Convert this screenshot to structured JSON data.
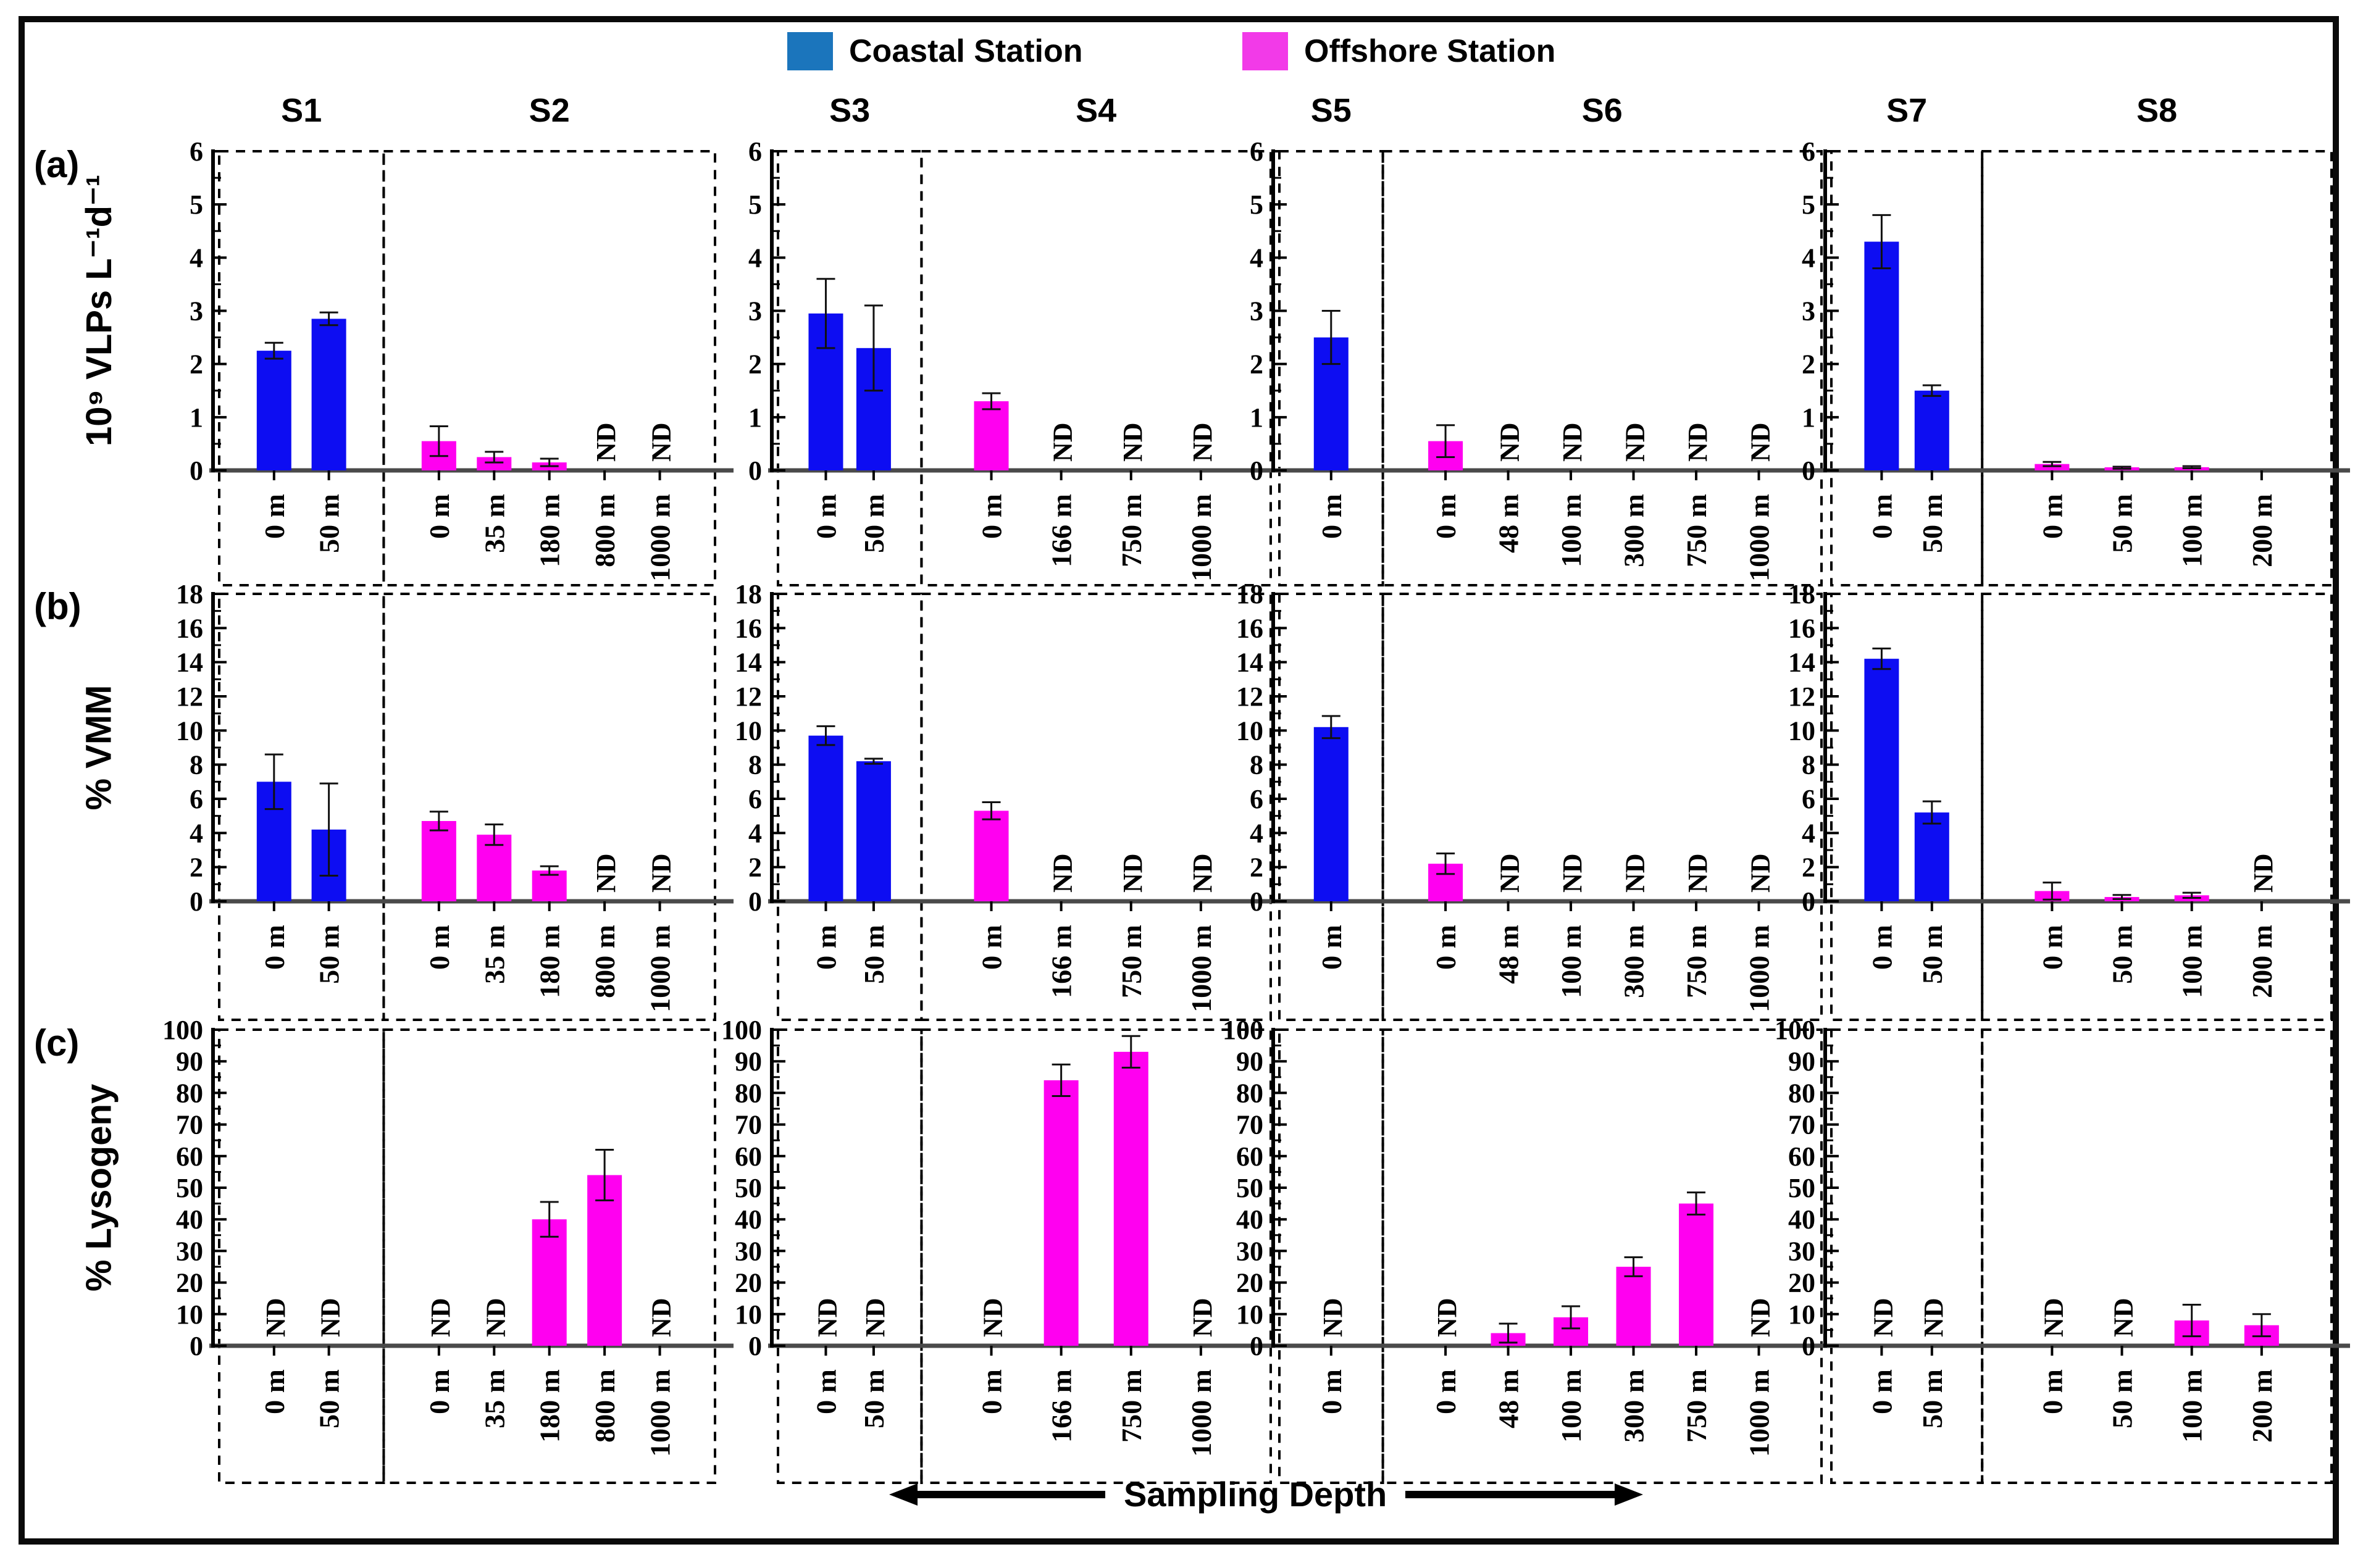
{
  "figure": {
    "legend": {
      "items": [
        {
          "id": "coastal",
          "label": "Coastal Station",
          "swatch_color": "#1b75bc",
          "bar_color": "#0d0df2"
        },
        {
          "id": "offshore",
          "label": "Offshore Station",
          "swatch_color": "#f23ae8",
          "bar_color": "#ff00f0"
        }
      ]
    },
    "x_axis_caption": "Sampling Depth",
    "nd_label": "ND",
    "stations": [
      "S1",
      "S2",
      "S3",
      "S4",
      "S5",
      "S6",
      "S7",
      "S8"
    ]
  },
  "chart_data": [
    {
      "type": "bar",
      "panel": "(a)",
      "ylabel": "10⁹ VLPs L⁻¹d⁻¹",
      "ylim": [
        0,
        6
      ],
      "ytick_step": 1,
      "minor_step": 0.5,
      "groups": [
        {
          "station": "S1",
          "type": "coastal",
          "bars": [
            {
              "depth": "0 m",
              "value": 2.25,
              "err": 0.15
            },
            {
              "depth": "50 m",
              "value": 2.85,
              "err": 0.12
            }
          ]
        },
        {
          "station": "S2",
          "type": "offshore",
          "bars": [
            {
              "depth": "0 m",
              "value": 0.55,
              "err": 0.28
            },
            {
              "depth": "35 m",
              "value": 0.25,
              "err": 0.1
            },
            {
              "depth": "180 m",
              "value": 0.15,
              "err": 0.07
            },
            {
              "depth": "800 m",
              "nd": true
            },
            {
              "depth": "1000 m",
              "nd": true
            }
          ]
        },
        {
          "station": "S3",
          "type": "coastal",
          "bars": [
            {
              "depth": "0 m",
              "value": 2.95,
              "err": 0.65
            },
            {
              "depth": "50 m",
              "value": 2.3,
              "err": 0.8
            }
          ]
        },
        {
          "station": "S4",
          "type": "offshore",
          "bars": [
            {
              "depth": "0 m",
              "value": 1.3,
              "err": 0.15
            },
            {
              "depth": "166 m",
              "nd": true
            },
            {
              "depth": "750 m",
              "nd": true
            },
            {
              "depth": "1000 m",
              "nd": true
            }
          ]
        },
        {
          "station": "S5",
          "type": "coastal",
          "bars": [
            {
              "depth": "0 m",
              "value": 2.5,
              "err": 0.5
            }
          ]
        },
        {
          "station": "S6",
          "type": "offshore",
          "bars": [
            {
              "depth": "0 m",
              "value": 0.55,
              "err": 0.3
            },
            {
              "depth": "48 m",
              "nd": true
            },
            {
              "depth": "100 m",
              "nd": true
            },
            {
              "depth": "300 m",
              "nd": true
            },
            {
              "depth": "750 m",
              "nd": true
            },
            {
              "depth": "1000 m",
              "nd": true
            }
          ]
        },
        {
          "station": "S7",
          "type": "coastal",
          "bars": [
            {
              "depth": "0 m",
              "value": 4.3,
              "err": 0.5
            },
            {
              "depth": "50 m",
              "value": 1.5,
              "err": 0.1
            }
          ]
        },
        {
          "station": "S8",
          "type": "offshore",
          "bars": [
            {
              "depth": "0 m",
              "value": 0.12,
              "err": 0.04
            },
            {
              "depth": "50 m",
              "value": 0.05,
              "err": 0.02
            },
            {
              "depth": "100 m",
              "value": 0.06,
              "err": 0.02
            },
            {
              "depth": "200 m",
              "value": null
            }
          ]
        }
      ]
    },
    {
      "type": "bar",
      "panel": "(b)",
      "ylabel": "% VMM",
      "ylim": [
        0,
        18
      ],
      "ytick_step": 2,
      "minor_step": 1,
      "groups": [
        {
          "station": "S1",
          "type": "coastal",
          "bars": [
            {
              "depth": "0 m",
              "value": 7.0,
              "err": 1.6
            },
            {
              "depth": "50 m",
              "value": 4.2,
              "err": 2.7
            }
          ]
        },
        {
          "station": "S2",
          "type": "offshore",
          "bars": [
            {
              "depth": "0 m",
              "value": 4.7,
              "err": 0.55
            },
            {
              "depth": "35 m",
              "value": 3.9,
              "err": 0.6
            },
            {
              "depth": "180 m",
              "value": 1.8,
              "err": 0.25
            },
            {
              "depth": "800 m",
              "nd": true
            },
            {
              "depth": "1000 m",
              "nd": true
            }
          ]
        },
        {
          "station": "S3",
          "type": "coastal",
          "bars": [
            {
              "depth": "0 m",
              "value": 9.7,
              "err": 0.55
            },
            {
              "depth": "50 m",
              "value": 8.2,
              "err": 0.15
            }
          ]
        },
        {
          "station": "S4",
          "type": "offshore",
          "bars": [
            {
              "depth": "0 m",
              "value": 5.3,
              "err": 0.5
            },
            {
              "depth": "166 m",
              "nd": true
            },
            {
              "depth": "750 m",
              "nd": true
            },
            {
              "depth": "1000 m",
              "nd": true
            }
          ]
        },
        {
          "station": "S5",
          "type": "coastal",
          "bars": [
            {
              "depth": "0 m",
              "value": 10.2,
              "err": 0.65
            }
          ]
        },
        {
          "station": "S6",
          "type": "offshore",
          "bars": [
            {
              "depth": "0 m",
              "value": 2.2,
              "err": 0.6
            },
            {
              "depth": "48 m",
              "nd": true
            },
            {
              "depth": "100 m",
              "nd": true
            },
            {
              "depth": "300 m",
              "nd": true
            },
            {
              "depth": "750 m",
              "nd": true
            },
            {
              "depth": "1000 m",
              "nd": true
            }
          ]
        },
        {
          "station": "S7",
          "type": "coastal",
          "bars": [
            {
              "depth": "0 m",
              "value": 14.2,
              "err": 0.6
            },
            {
              "depth": "50 m",
              "value": 5.2,
              "err": 0.65
            }
          ]
        },
        {
          "station": "S8",
          "type": "offshore",
          "bars": [
            {
              "depth": "0 m",
              "value": 0.6,
              "err": 0.5
            },
            {
              "depth": "50 m",
              "value": 0.25,
              "err": 0.12
            },
            {
              "depth": "100 m",
              "value": 0.35,
              "err": 0.15
            },
            {
              "depth": "200 m",
              "nd": true
            }
          ]
        }
      ]
    },
    {
      "type": "bar",
      "panel": "(c)",
      "ylabel": "% Lysogeny",
      "ylim": [
        0,
        100
      ],
      "ytick_step": 10,
      "minor_step": 5,
      "groups": [
        {
          "station": "S1",
          "type": "coastal",
          "bars": [
            {
              "depth": "0 m",
              "nd": true
            },
            {
              "depth": "50 m",
              "nd": true
            }
          ]
        },
        {
          "station": "S2",
          "type": "offshore",
          "bars": [
            {
              "depth": "0 m",
              "nd": true
            },
            {
              "depth": "35 m",
              "nd": true
            },
            {
              "depth": "180 m",
              "value": 40,
              "err": 5.5
            },
            {
              "depth": "800 m",
              "value": 54,
              "err": 8
            },
            {
              "depth": "1000 m",
              "nd": true
            }
          ]
        },
        {
          "station": "S3",
          "type": "coastal",
          "bars": [
            {
              "depth": "0 m",
              "nd": true
            },
            {
              "depth": "50 m",
              "nd": true
            }
          ]
        },
        {
          "station": "S4",
          "type": "offshore",
          "bars": [
            {
              "depth": "0 m",
              "nd": true
            },
            {
              "depth": "166 m",
              "value": 84,
              "err": 5
            },
            {
              "depth": "750 m",
              "value": 93,
              "err": 5
            },
            {
              "depth": "1000 m",
              "nd": true
            }
          ]
        },
        {
          "station": "S5",
          "type": "coastal",
          "bars": [
            {
              "depth": "0 m",
              "nd": true
            }
          ]
        },
        {
          "station": "S6",
          "type": "offshore",
          "bars": [
            {
              "depth": "0 m",
              "nd": true
            },
            {
              "depth": "48 m",
              "value": 4,
              "err": 3
            },
            {
              "depth": "100 m",
              "value": 9,
              "err": 3.5
            },
            {
              "depth": "300 m",
              "value": 25,
              "err": 3
            },
            {
              "depth": "750 m",
              "value": 45,
              "err": 3.5
            },
            {
              "depth": "1000 m",
              "nd": true
            }
          ]
        },
        {
          "station": "S7",
          "type": "coastal",
          "bars": [
            {
              "depth": "0 m",
              "nd": true
            },
            {
              "depth": "50 m",
              "nd": true
            }
          ]
        },
        {
          "station": "S8",
          "type": "offshore",
          "bars": [
            {
              "depth": "0 m",
              "nd": true
            },
            {
              "depth": "50 m",
              "nd": true
            },
            {
              "depth": "100 m",
              "value": 8,
              "err": 5
            },
            {
              "depth": "200 m",
              "value": 6.5,
              "err": 3.5
            }
          ]
        }
      ]
    }
  ]
}
